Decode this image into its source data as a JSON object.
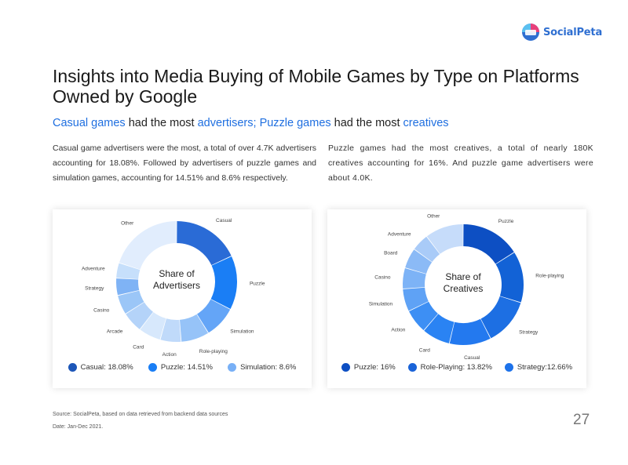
{
  "brand": {
    "name": "SocialPeta"
  },
  "title": "Insights into Media Buying of Mobile Games by Type on Platforms Owned by Google",
  "subtitle": {
    "part1": "Casual games",
    "part2": " had the most ",
    "part3": "advertisers;",
    "part4": " ",
    "part5": "Puzzle games",
    "part6": " had the most ",
    "part7": "creatives"
  },
  "paragraphs": {
    "left": "Casual game advertisers were the most, a total of over 4.7K advertisers accounting for 18.08%. Followed by advertisers of puzzle games and simulation games, accounting for 14.51% and 8.6% respectively.",
    "right": "Puzzle games had the most creatives, a total of nearly 180K creatives accounting for 16%. And puzzle game advertisers were about 4.0K."
  },
  "chart_data": [
    {
      "type": "pie",
      "title": "Share of Advertisers",
      "categories": [
        "Casual",
        "Puzzle",
        "Simulation",
        "Role-playing",
        "Action",
        "Card",
        "Arcade",
        "Casino",
        "Strategy",
        "Adventure",
        "Other"
      ],
      "values": [
        18.08,
        14.51,
        8.6,
        7.6,
        5.6,
        6.0,
        5.6,
        5.3,
        4.6,
        4.1,
        20.0
      ],
      "colors": [
        "#2a6bd6",
        "#1a7ef5",
        "#64a5f7",
        "#96c3f8",
        "#c0dafa",
        "#d7e8fc",
        "#b4d3f9",
        "#9bc6f7",
        "#7fb3f5",
        "#c6dffb",
        "#e1edfd"
      ],
      "legend": [
        {
          "label": "Casual: 18.08%",
          "color": "#1c56b8"
        },
        {
          "label": "Puzzle: 14.51%",
          "color": "#1a7ef5"
        },
        {
          "label": "Simulation: 8.6%",
          "color": "#78b0f6"
        }
      ]
    },
    {
      "type": "pie",
      "title": "Share of Creatives",
      "categories": [
        "Puzzle",
        "Role-playing",
        "Strategy",
        "Casual",
        "Card",
        "Action",
        "Simulation",
        "Casino",
        "Board",
        "Adventure",
        "Other"
      ],
      "values": [
        16.0,
        13.82,
        12.66,
        11.2,
        7.6,
        6.5,
        6.1,
        5.6,
        5.5,
        4.7,
        10.32
      ],
      "colors": [
        "#0d4fc3",
        "#1262d6",
        "#1d6fe3",
        "#2379ef",
        "#2a83f3",
        "#3d8ff4",
        "#5fa2f5",
        "#7db3f6",
        "#8bbaf6",
        "#a9cbf8",
        "#c6dcfa"
      ],
      "legend": [
        {
          "label": "Puzzle: 16%",
          "color": "#0d4fc3"
        },
        {
          "label": "Role-Playing: 13.82%",
          "color": "#1a63d8"
        },
        {
          "label": "Strategy:12.66%",
          "color": "#1d72ea"
        }
      ]
    }
  ],
  "chart_centers": [
    {
      "line1": "Share of",
      "line2": "Advertisers"
    },
    {
      "line1": "Share of",
      "line2": "Creatives"
    }
  ],
  "footer": {
    "source": "Source: SocialPeta, based on data retrieved from backend data sources",
    "date": "Date: Jan-Dec 2021.",
    "page": "27"
  }
}
